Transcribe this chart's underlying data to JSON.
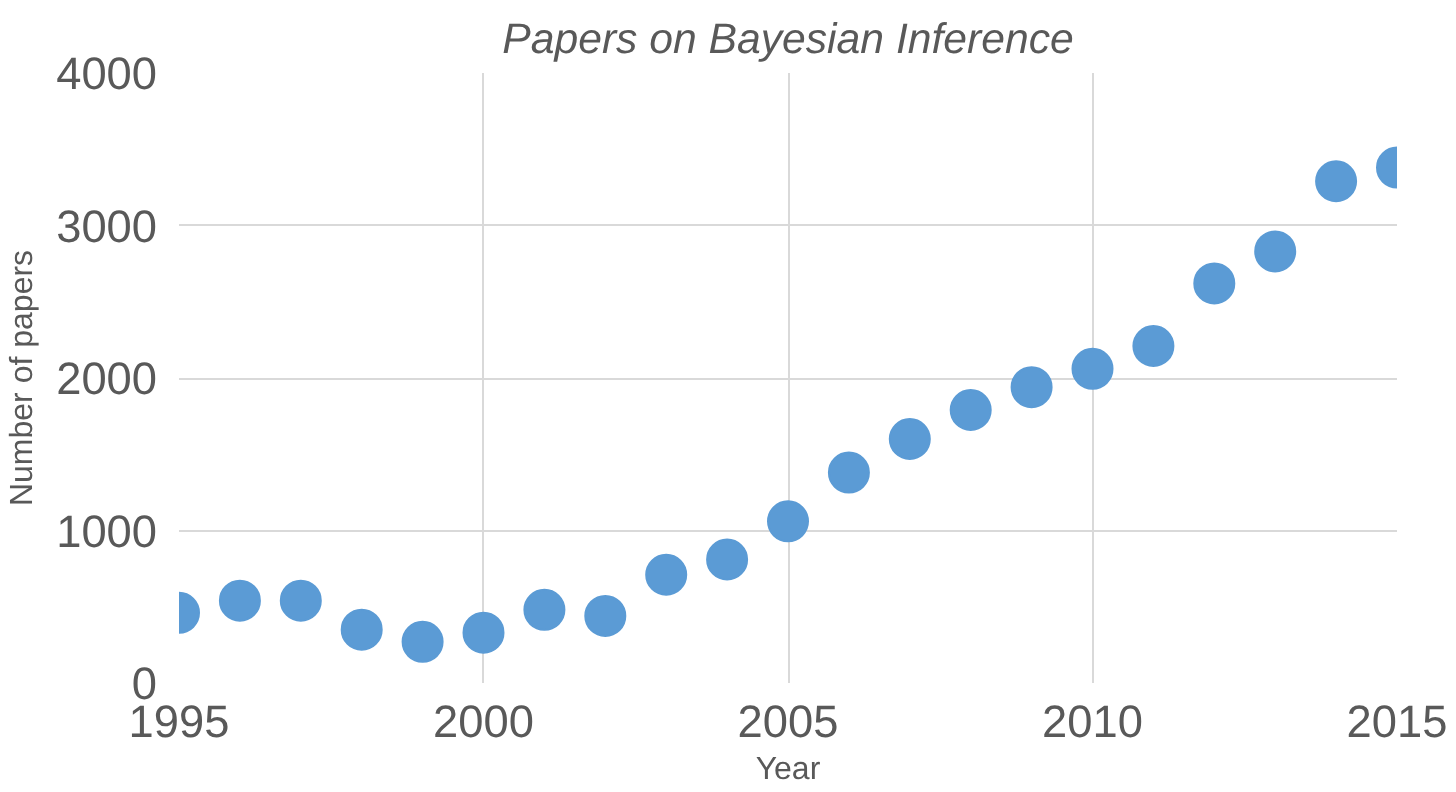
{
  "chart_data": {
    "type": "scatter",
    "title": "Papers on Bayesian Inference",
    "xlabel": "Year",
    "ylabel": "Number of papers",
    "x": [
      1995,
      1996,
      1997,
      1998,
      1999,
      2000,
      2001,
      2002,
      2003,
      2004,
      2005,
      2006,
      2007,
      2008,
      2009,
      2010,
      2011,
      2012,
      2013,
      2014,
      2015
    ],
    "series": [
      {
        "color": "#5b9bd5",
        "values": [
          460,
          540,
          540,
          350,
          270,
          330,
          480,
          440,
          710,
          810,
          1060,
          1380,
          1600,
          1790,
          1940,
          2060,
          2210,
          2620,
          2830,
          3290,
          3380
        ]
      }
    ],
    "xlim": [
      1995,
      2015
    ],
    "xticks": [
      1995,
      2000,
      2005,
      2010,
      2015
    ],
    "ylim": [
      0,
      4000
    ],
    "yticks": [
      0,
      1000,
      2000,
      3000,
      4000
    ],
    "grid": true,
    "marker": "circle"
  }
}
